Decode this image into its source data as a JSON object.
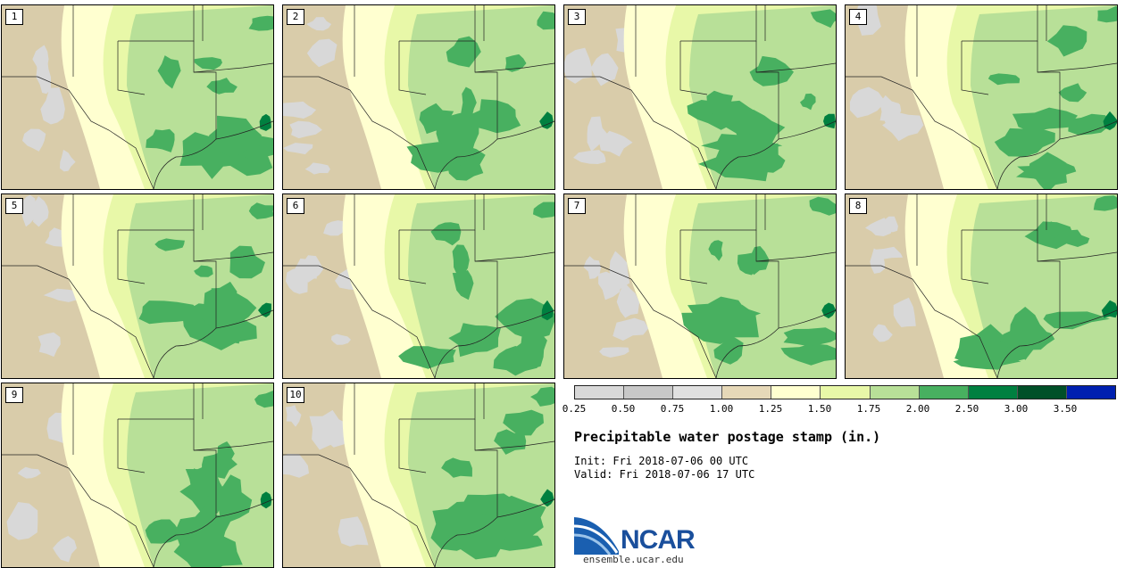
{
  "panels": [
    {
      "label": "1"
    },
    {
      "label": "2"
    },
    {
      "label": "3"
    },
    {
      "label": "4"
    },
    {
      "label": "5"
    },
    {
      "label": "6"
    },
    {
      "label": "7"
    },
    {
      "label": "8"
    },
    {
      "label": "9"
    },
    {
      "label": "10"
    }
  ],
  "legend": {
    "bins": [
      {
        "color": "#d8d8d8"
      },
      {
        "color": "#c8c8c8"
      },
      {
        "color": "#e0e0e0"
      },
      {
        "color": "#e6d8b8"
      },
      {
        "color": "#ffffd0"
      },
      {
        "color": "#e8f8a8"
      },
      {
        "color": "#b8e098"
      },
      {
        "color": "#48b060"
      },
      {
        "color": "#008040"
      },
      {
        "color": "#005028"
      },
      {
        "color": "#0020b0"
      }
    ],
    "tick_labels": [
      "0.25",
      "0.50",
      "0.75",
      "1.00",
      "1.25",
      "1.50",
      "1.75",
      "2.00",
      "2.50",
      "3.00",
      "3.50"
    ]
  },
  "title": "Precipitable water postage stamp (in.)",
  "init": "Init: Fri 2018-07-06 00 UTC",
  "valid": "Valid: Fri 2018-07-06 17 UTC",
  "logo": {
    "text": "NCAR",
    "url": "ensemble.ucar.edu"
  }
}
